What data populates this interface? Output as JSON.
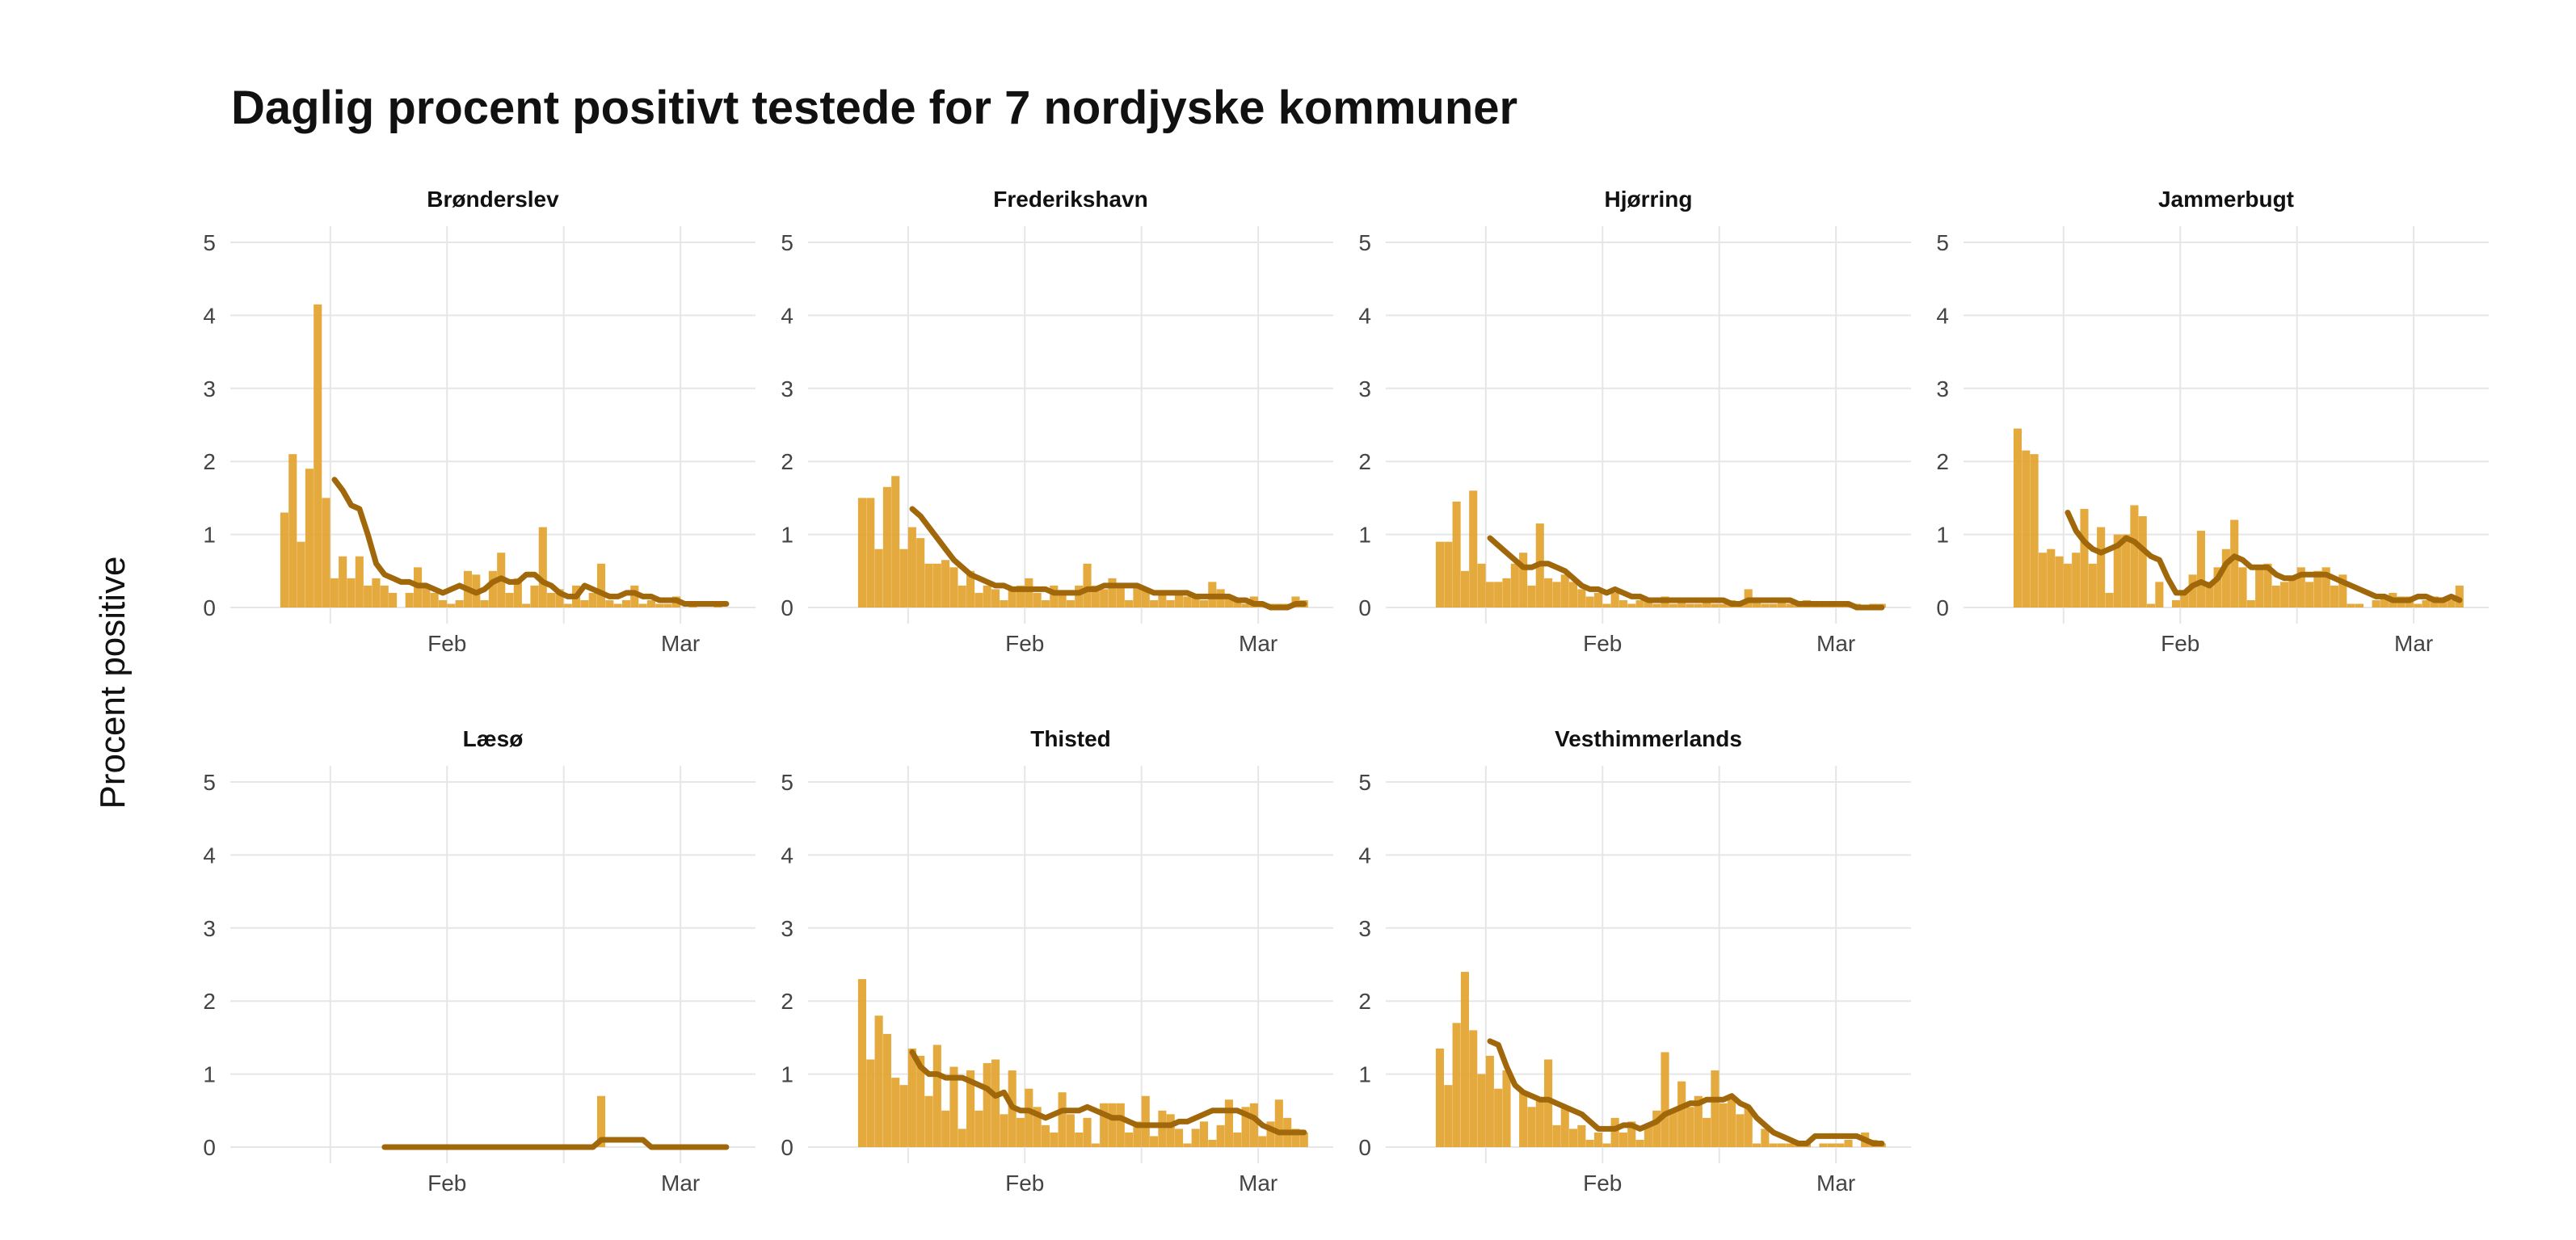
{
  "title": "Daglig procent positivt testede for 7 nordjyske kommuner",
  "y_axis_title": "Procent positive",
  "colors": {
    "bar": "#E3A32D",
    "line": "#A0680A",
    "grid": "#E6E6E6",
    "text": "#111111",
    "tick_text": "#444444"
  },
  "chart_data": {
    "type": "bar",
    "layout": "facet-grid 4 columns x 2 rows",
    "x_start": "2021-01-06",
    "x_tick_labels": [
      "Feb",
      "Mar"
    ],
    "x_tick_dates": [
      "2021-02-01",
      "2021-03-01"
    ],
    "x_minor_grid_dates": [
      "2021-01-18",
      "2021-02-15"
    ],
    "ylim": [
      0,
      5
    ],
    "y_ticks": [
      0,
      1,
      2,
      3,
      4,
      5
    ],
    "grid": true,
    "panels": [
      {
        "name": "Brønderslev",
        "bars": [
          1.3,
          2.1,
          0.9,
          1.9,
          4.15,
          1.5,
          0.4,
          0.7,
          0.4,
          0.7,
          0.3,
          0.4,
          0.3,
          0.2,
          0,
          0.2,
          0.55,
          0.3,
          0.2,
          0.1,
          0.05,
          0.1,
          0.5,
          0.45,
          0.1,
          0.5,
          0.75,
          0.2,
          0.4,
          0.05,
          0.3,
          1.1,
          0.2,
          0.25,
          0.05,
          0.3,
          0.1,
          0.2,
          0.6,
          0.1,
          0.05,
          0.1,
          0.3,
          0.05,
          0.1,
          0.05,
          0.05,
          0.15,
          0,
          0.05,
          0,
          0,
          0.05,
          0
        ],
        "line": [
          null,
          null,
          null,
          null,
          null,
          null,
          1.75,
          1.6,
          1.4,
          1.35,
          1.0,
          0.6,
          0.45,
          0.4,
          0.35,
          0.35,
          0.3,
          0.3,
          0.25,
          0.2,
          0.25,
          0.3,
          0.25,
          0.2,
          0.25,
          0.35,
          0.4,
          0.35,
          0.35,
          0.45,
          0.45,
          0.35,
          0.3,
          0.2,
          0.15,
          0.15,
          0.3,
          0.25,
          0.2,
          0.15,
          0.15,
          0.2,
          0.2,
          0.15,
          0.15,
          0.1,
          0.1,
          0.1,
          0.05,
          0.05,
          0.05,
          0.05,
          0.05,
          0.05
        ]
      },
      {
        "name": "Frederikshavn",
        "bars": [
          1.5,
          1.5,
          0.8,
          1.65,
          1.8,
          0.8,
          1.1,
          0.95,
          0.6,
          0.6,
          0.65,
          0.55,
          0.3,
          0.5,
          0.2,
          0.3,
          0.25,
          0.1,
          0.25,
          0.3,
          0.4,
          0.2,
          0.1,
          0.3,
          0.2,
          0.1,
          0.3,
          0.6,
          0.3,
          0.25,
          0.4,
          0.3,
          0.1,
          0.3,
          0.25,
          0.1,
          0.2,
          0.1,
          0.2,
          0.15,
          0.15,
          0.1,
          0.35,
          0.25,
          0.15,
          0.1,
          0.05,
          0.15,
          0.05,
          0.05,
          0.05,
          0.05,
          0.15,
          0.1
        ],
        "line": [
          null,
          null,
          null,
          null,
          null,
          null,
          1.35,
          1.25,
          1.1,
          0.95,
          0.8,
          0.65,
          0.55,
          0.45,
          0.4,
          0.35,
          0.3,
          0.3,
          0.25,
          0.25,
          0.25,
          0.25,
          0.25,
          0.2,
          0.2,
          0.2,
          0.2,
          0.25,
          0.25,
          0.3,
          0.3,
          0.3,
          0.3,
          0.3,
          0.25,
          0.2,
          0.2,
          0.2,
          0.2,
          0.2,
          0.15,
          0.15,
          0.15,
          0.15,
          0.15,
          0.1,
          0.1,
          0.05,
          0.05,
          0,
          0,
          0,
          0.05,
          0.05
        ]
      },
      {
        "name": "Hjørring",
        "bars": [
          0.9,
          0.9,
          1.45,
          0.5,
          1.6,
          0.6,
          0.35,
          0.35,
          0.4,
          0.6,
          0.75,
          0.3,
          1.15,
          0.4,
          0.35,
          0.45,
          0.35,
          0.25,
          0.15,
          0.2,
          0.05,
          0.2,
          0.1,
          0.05,
          0.1,
          0.1,
          0.05,
          0.15,
          0.05,
          0.1,
          0.05,
          0.05,
          0.1,
          0.05,
          0.05,
          0.1,
          0.05,
          0.25,
          0.1,
          0.05,
          0.05,
          0.1,
          0.05,
          0.05,
          0.1,
          0.05,
          0.05,
          0.05,
          0.05,
          0.05,
          0.05,
          0,
          0.05,
          0.05
        ],
        "line": [
          null,
          null,
          null,
          null,
          null,
          null,
          0.95,
          0.85,
          0.75,
          0.65,
          0.55,
          0.55,
          0.6,
          0.6,
          0.55,
          0.5,
          0.4,
          0.3,
          0.25,
          0.25,
          0.2,
          0.25,
          0.2,
          0.15,
          0.15,
          0.1,
          0.1,
          0.1,
          0.1,
          0.1,
          0.1,
          0.1,
          0.1,
          0.1,
          0.1,
          0.05,
          0.05,
          0.1,
          0.1,
          0.1,
          0.1,
          0.1,
          0.1,
          0.05,
          0.05,
          0.05,
          0.05,
          0.05,
          0.05,
          0.05,
          0,
          0,
          0,
          0
        ]
      },
      {
        "name": "Jammerbugt",
        "bars": [
          2.45,
          2.15,
          2.1,
          0.75,
          0.8,
          0.7,
          0.6,
          0.75,
          1.35,
          0.6,
          1.1,
          0.2,
          1.0,
          1.0,
          1.4,
          1.25,
          0.05,
          0.35,
          0,
          0.1,
          0.2,
          0.45,
          1.05,
          0.35,
          0.55,
          0.8,
          1.2,
          0.55,
          0.1,
          0.55,
          0.6,
          0.3,
          0.35,
          0.4,
          0.55,
          0.35,
          0.5,
          0.55,
          0.3,
          0.45,
          0.05,
          0.05,
          0,
          0.1,
          0.15,
          0.2,
          0.15,
          0.15,
          0.05,
          0.1,
          0.15,
          0.1,
          0.1,
          0.3
        ],
        "line": [
          null,
          null,
          null,
          null,
          null,
          null,
          1.3,
          1.05,
          0.9,
          0.8,
          0.75,
          0.8,
          0.85,
          0.95,
          0.9,
          0.8,
          0.7,
          0.65,
          0.4,
          0.2,
          0.2,
          0.3,
          0.35,
          0.3,
          0.4,
          0.6,
          0.7,
          0.65,
          0.55,
          0.55,
          0.55,
          0.45,
          0.4,
          0.4,
          0.45,
          0.45,
          0.45,
          0.45,
          0.4,
          0.35,
          0.3,
          0.25,
          0.2,
          0.15,
          0.15,
          0.1,
          0.1,
          0.1,
          0.15,
          0.15,
          0.1,
          0.1,
          0.15,
          0.1
        ]
      },
      {
        "name": "Læsø",
        "bars": [
          0,
          0,
          0,
          0,
          0,
          0,
          0,
          0,
          0,
          0,
          0,
          0,
          0,
          0,
          0,
          0,
          0,
          0,
          0,
          0,
          0,
          0,
          0,
          0,
          0,
          0,
          0,
          0,
          0,
          0,
          0,
          0,
          0,
          0,
          0,
          0,
          0,
          0,
          0.7,
          0,
          0,
          0,
          0,
          0,
          0,
          0,
          0,
          0,
          0,
          0,
          0,
          0,
          0,
          0
        ],
        "line": [
          null,
          null,
          null,
          null,
          null,
          null,
          null,
          null,
          null,
          null,
          null,
          null,
          0,
          0,
          0,
          0,
          0,
          0,
          0,
          0,
          0,
          0,
          0,
          0,
          0,
          0,
          0,
          0,
          0,
          0,
          0,
          0,
          0,
          0,
          0,
          0,
          0,
          0,
          0.1,
          0.1,
          0.1,
          0.1,
          0.1,
          0.1,
          0,
          0,
          0,
          0,
          0,
          0,
          0,
          0,
          0,
          0
        ]
      },
      {
        "name": "Thisted",
        "bars": [
          2.3,
          1.2,
          1.8,
          1.55,
          0.95,
          0.85,
          1.35,
          1.25,
          0.7,
          1.4,
          0.5,
          1.1,
          0.25,
          1.05,
          0.5,
          1.15,
          1.2,
          0.45,
          1.05,
          0.4,
          0.8,
          0.55,
          0.3,
          0.2,
          0.75,
          0.45,
          0.2,
          0.4,
          0.05,
          0.6,
          0.6,
          0.6,
          0.2,
          0.35,
          0.7,
          0.15,
          0.5,
          0.45,
          0.25,
          0.05,
          0.25,
          0.35,
          0.1,
          0.3,
          0.65,
          0.2,
          0.55,
          0.6,
          0.15,
          0.35,
          0.65,
          0.4,
          0.25,
          0.2
        ],
        "line": [
          null,
          null,
          null,
          null,
          null,
          null,
          1.3,
          1.1,
          1.0,
          1.0,
          0.95,
          0.95,
          0.95,
          0.9,
          0.85,
          0.8,
          0.7,
          0.75,
          0.55,
          0.5,
          0.5,
          0.45,
          0.4,
          0.45,
          0.5,
          0.5,
          0.5,
          0.55,
          0.5,
          0.45,
          0.4,
          0.4,
          0.35,
          0.3,
          0.3,
          0.3,
          0.3,
          0.3,
          0.35,
          0.35,
          0.4,
          0.45,
          0.5,
          0.5,
          0.5,
          0.5,
          0.45,
          0.4,
          0.3,
          0.25,
          0.2,
          0.2,
          0.2,
          0.2
        ]
      },
      {
        "name": "Vesthimmerlands",
        "bars": [
          1.35,
          0.85,
          1.7,
          2.4,
          1.6,
          1.0,
          1.25,
          0.8,
          1.05,
          0,
          0.75,
          0.55,
          0.65,
          1.2,
          0.3,
          0.55,
          0.25,
          0.3,
          0.1,
          0.2,
          0.05,
          0.4,
          0.2,
          0.35,
          0.1,
          0.3,
          0.5,
          1.3,
          0.5,
          0.9,
          0.55,
          0.7,
          0.4,
          1.05,
          0.6,
          0.7,
          0.45,
          0.55,
          0.05,
          0.25,
          0.05,
          0.05,
          0.05,
          0.05,
          0.05,
          0,
          0.05,
          0.05,
          0.05,
          0.1,
          0,
          0.2,
          0.1,
          0.05
        ],
        "line": [
          null,
          null,
          null,
          null,
          null,
          null,
          1.45,
          1.4,
          1.1,
          0.85,
          0.75,
          0.7,
          0.65,
          0.65,
          0.6,
          0.55,
          0.5,
          0.45,
          0.35,
          0.25,
          0.25,
          0.25,
          0.3,
          0.3,
          0.25,
          0.3,
          0.35,
          0.45,
          0.5,
          0.55,
          0.6,
          0.6,
          0.65,
          0.65,
          0.65,
          0.7,
          0.6,
          0.55,
          0.4,
          0.3,
          0.2,
          0.15,
          0.1,
          0.05,
          0.05,
          0.15,
          0.15,
          0.15,
          0.15,
          0.15,
          0.15,
          0.1,
          0.05,
          0.05
        ]
      }
    ]
  }
}
